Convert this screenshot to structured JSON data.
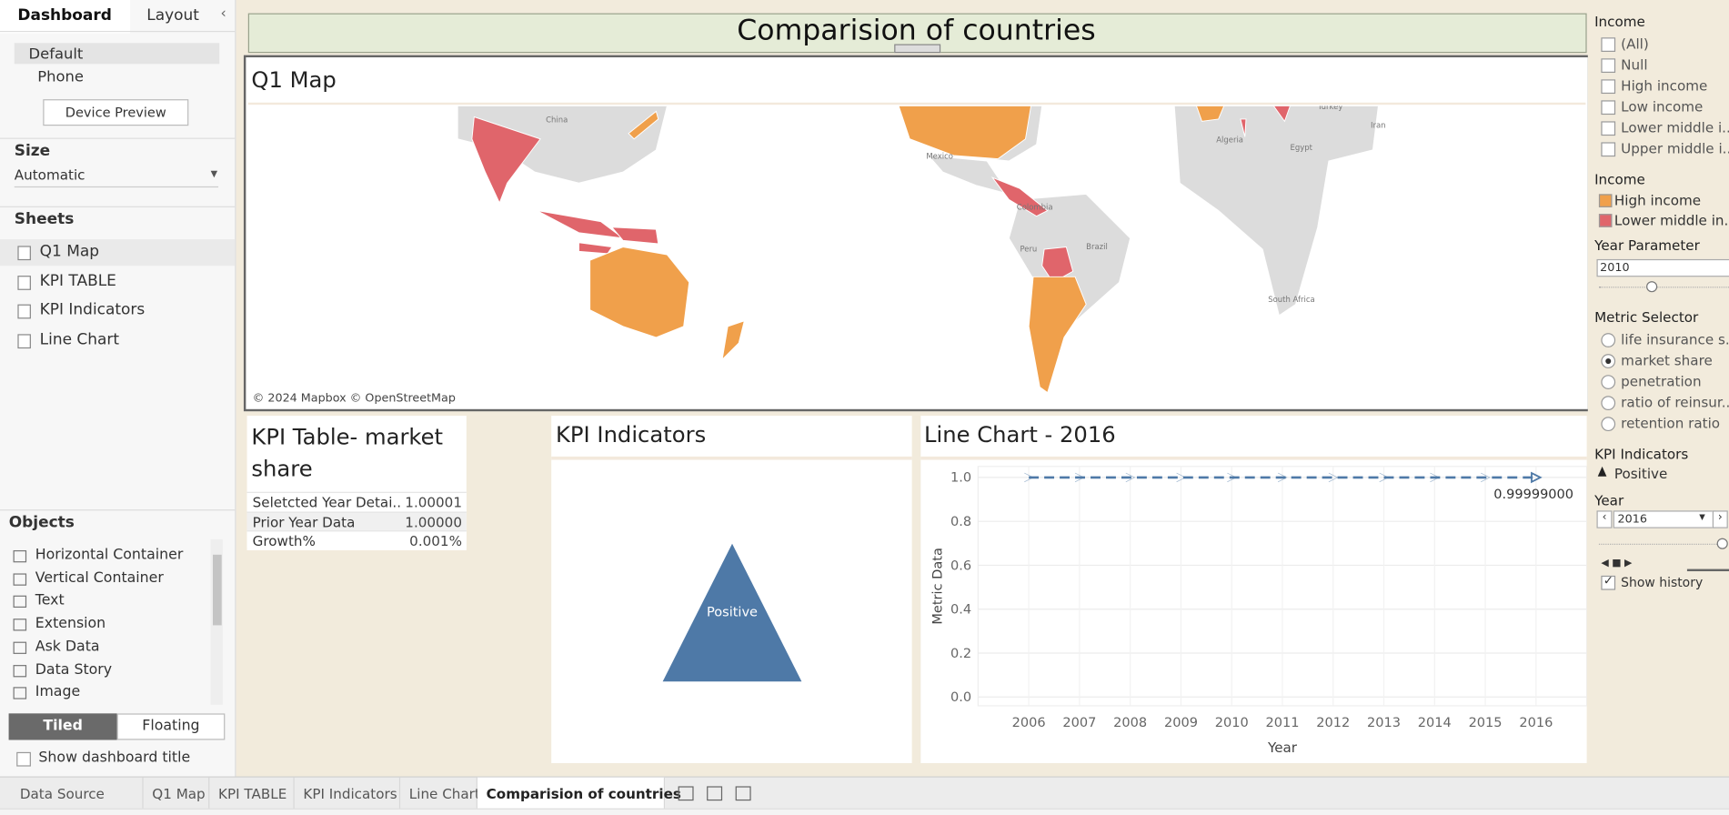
{
  "left_panel": {
    "tabs": [
      "Dashboard",
      "Layout"
    ],
    "devices": [
      "Default",
      "Phone"
    ],
    "device_preview": "Device Preview",
    "size": {
      "heading": "Size",
      "value": "Automatic"
    },
    "sheets": {
      "heading": "Sheets",
      "items": [
        "Q1 Map",
        "KPI TABLE",
        "KPI Indicators",
        "Line Chart"
      ]
    },
    "objects": {
      "heading": "Objects",
      "items": [
        "Horizontal Container",
        "Vertical Container",
        "Text",
        "Extension",
        "Ask Data",
        "Data Story",
        "Image"
      ]
    },
    "layout_modes": [
      "Tiled",
      "Floating"
    ],
    "show_title": "Show dashboard title"
  },
  "dashboard": {
    "title": "Comparision of countries",
    "map": {
      "title": "Q1 Map",
      "labels": [
        "China",
        "Mexico",
        "Colombia",
        "Peru",
        "Brazil",
        "Turkey",
        "Iran",
        "Algeria",
        "Egypt",
        "South Africa"
      ],
      "attribution": "© 2024 Mapbox © OpenStreetMap"
    },
    "kpi_table": {
      "title": "KPI Table- market share",
      "rows": [
        [
          "Seletcted Year Detai..",
          "1.00001"
        ],
        [
          "Prior Year Data",
          "1.00000"
        ],
        [
          "Growth%",
          "0.001%"
        ]
      ]
    },
    "kpi_indicators": {
      "title": "KPI Indicators",
      "label": "Positive"
    }
  },
  "chart_data": {
    "type": "line",
    "title": "Line Chart - 2016",
    "x": [
      2006,
      2007,
      2008,
      2009,
      2010,
      2011,
      2012,
      2013,
      2014,
      2015,
      2016
    ],
    "values": [
      1,
      1,
      1,
      1,
      1,
      1,
      1,
      1,
      1,
      1,
      0.99999
    ],
    "value_labels": [
      null,
      null,
      null,
      null,
      null,
      null,
      null,
      null,
      null,
      null,
      "0.99999000"
    ],
    "color": "#4e79a7",
    "x_label": "Year",
    "y_label": "Metric Data",
    "xlim": [
      2005,
      2017
    ],
    "xticks": [
      2006,
      2007,
      2008,
      2009,
      2010,
      2011,
      2012,
      2013,
      2014,
      2015,
      2016
    ],
    "ylim": [
      -0.04,
      1.05
    ],
    "yticks": [
      {
        "value": 0,
        "label": "0.0"
      },
      0.2,
      0.4,
      0.6,
      0.8,
      {
        "value": 1,
        "label": "1.0"
      }
    ],
    "grid": true
  },
  "right_panel": {
    "income_filter": {
      "heading": "Income",
      "options": [
        "(All)",
        "Null",
        "High income",
        "Low income",
        "Lower middle i...",
        "Upper middle i..."
      ]
    },
    "income_legend": {
      "heading": "Income",
      "items": [
        {
          "label": "High income",
          "color": "#f0a04b"
        },
        {
          "label": "Lower middle in..",
          "color": "#e0656b"
        }
      ]
    },
    "year_parameter": {
      "heading": "Year Parameter",
      "value": "2010"
    },
    "metric_selector": {
      "heading": "Metric Selector",
      "options": [
        "life insurance s...",
        "market share",
        "penetration",
        "ratio of reinsur...",
        "retention ratio"
      ],
      "selected": 1
    },
    "kpi_legend": {
      "heading": "KPI Indicators",
      "items": [
        "Positive"
      ]
    },
    "year_filter": {
      "heading": "Year",
      "value": "2016",
      "show_history": "Show history"
    }
  },
  "bottom_tabs": {
    "items": [
      "Data Source",
      "Q1 Map",
      "KPI TABLE",
      "KPI Indicators",
      "Line Chart",
      "Comparision of countries"
    ],
    "active": 5
  }
}
